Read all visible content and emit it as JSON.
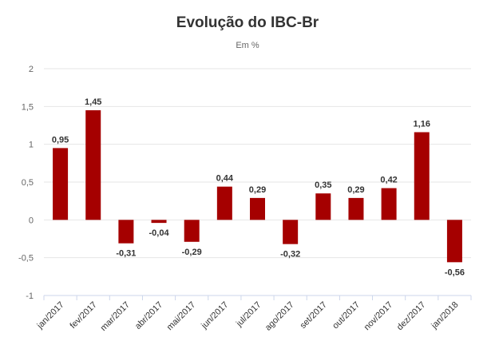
{
  "chart_data": {
    "type": "bar",
    "title": "Evolução do IBC-Br",
    "subtitle": "Em %",
    "xlabel": "",
    "ylabel": "",
    "categories": [
      "jan/2017",
      "fev/2017",
      "mar/2017",
      "abr/2017",
      "mai/2017",
      "jun/2017",
      "jul/2017",
      "ago/2017",
      "set/2017",
      "out/2017",
      "nov/2017",
      "dez/2017",
      "jan/2018"
    ],
    "values": [
      0.95,
      1.45,
      -0.31,
      -0.04,
      -0.29,
      0.44,
      0.29,
      -0.32,
      0.35,
      0.29,
      0.42,
      1.16,
      -0.56
    ],
    "data_labels": [
      "0,95",
      "1,45",
      "-0,31",
      "-0,04",
      "-0,29",
      "0,44",
      "0,29",
      "-0,32",
      "0,35",
      "0,29",
      "0,42",
      "1,16",
      "-0,56"
    ],
    "ylim": [
      -1,
      2
    ],
    "yticks": [
      -1,
      -0.5,
      0,
      0.5,
      1,
      1.5,
      2
    ],
    "ytick_labels": [
      "-1",
      "-0,5",
      "0",
      "0,5",
      "1",
      "1,5",
      "2"
    ],
    "grid": true,
    "legend": false,
    "bar_color": "#a50000",
    "grid_color": "#e6e6e6",
    "axis_color": "#ccd6eb"
  }
}
